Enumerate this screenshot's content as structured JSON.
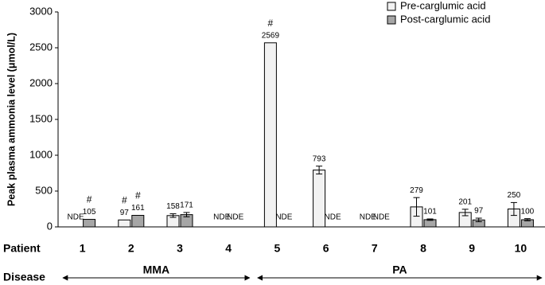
{
  "chart_data": {
    "type": "bar",
    "ylabel": "Peak plasma ammonia level (μmol/L)",
    "row_labels": {
      "patient": "Patient",
      "disease": "Disease"
    },
    "categories": [
      "1",
      "2",
      "3",
      "4",
      "5",
      "6",
      "7",
      "8",
      "9",
      "10"
    ],
    "diseases": [
      "MMA",
      "MMA",
      "MMA",
      "MMA",
      "PA",
      "PA",
      "PA",
      "PA",
      "PA",
      "PA"
    ],
    "ylim": [
      0,
      3000
    ],
    "yticks": [
      0,
      500,
      1000,
      1500,
      2000,
      2500,
      3000
    ],
    "legend": "top-right",
    "series": [
      {
        "name": "Pre-carglumic acid",
        "color": "#f2f2f2",
        "values": [
          null,
          97,
          158,
          null,
          2569,
          793,
          null,
          279,
          201,
          250
        ],
        "value_labels": [
          "NDE",
          "97",
          "158",
          "NDE",
          "2569",
          "793",
          "NDE",
          "279",
          "201",
          "250"
        ],
        "errors": [
          null,
          null,
          25,
          null,
          null,
          55,
          null,
          130,
          45,
          90
        ],
        "flags": [
          null,
          "#",
          null,
          null,
          "#",
          null,
          null,
          null,
          null,
          null
        ]
      },
      {
        "name": "Post-carglumic acid",
        "color": "#a6a6a6",
        "values": [
          105,
          161,
          171,
          null,
          null,
          null,
          null,
          101,
          97,
          100
        ],
        "value_labels": [
          "105",
          "161",
          "171",
          "NDE",
          "NDE",
          "NDE",
          "NDE",
          "101",
          "97",
          "100"
        ],
        "errors": [
          null,
          null,
          30,
          null,
          null,
          null,
          null,
          10,
          25,
          15
        ],
        "flags": [
          "#",
          "#",
          null,
          null,
          null,
          null,
          null,
          null,
          null,
          null
        ]
      }
    ]
  }
}
